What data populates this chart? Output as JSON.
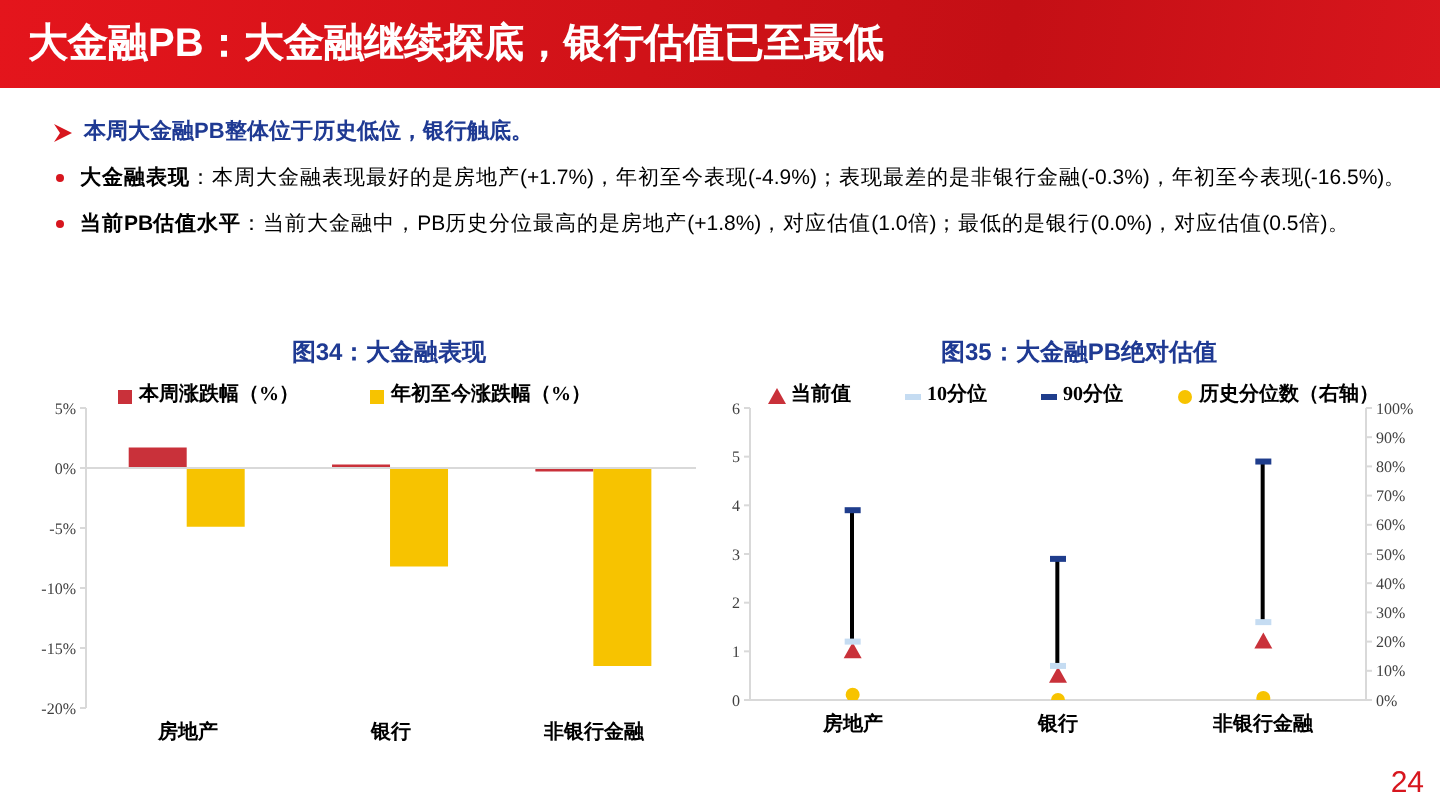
{
  "chart_data": [
    {
      "type": "other",
      "title": "大金融PB：大金融继续探底，银行估值已至最低",
      "subtitle": "本周大金融PB整体位于历史低位，银行触底。",
      "annotations": [
        "大金融表现：本周大金融表现最好的是房地产(+1.7%)，年初至今表现(-4.9%)；表现最差的是非银行金融(-0.3%)，年初至今表现(-16.5%)。",
        "当前PB估值水平：当前大金融中，PB历史分位最高的是房地产(+1.8%)，对应估值(1.0倍)；最低的是银行(0.0%)，对应估值(0.5倍)。",
        "24"
      ]
    },
    {
      "type": "bar",
      "title": "图34：大金融表现",
      "categories": [
        "房地产",
        "银行",
        "非银行金融"
      ],
      "series": [
        {
          "name": "本周涨跌幅（%）",
          "color": "#c9313a",
          "values": [
            1.7,
            0.3,
            -0.3
          ]
        },
        {
          "name": "年初至今涨跌幅（%）",
          "color": "#f7c300",
          "values": [
            -4.9,
            -8.2,
            -16.5
          ]
        }
      ],
      "ylim": [
        -20,
        5
      ],
      "yticks": [
        {
          "value": -20,
          "label": "-20%"
        },
        {
          "value": -15,
          "label": "-15%"
        },
        {
          "value": -10,
          "label": "-10%"
        },
        {
          "value": -5,
          "label": "-5%"
        },
        {
          "value": 0,
          "label": "0%"
        },
        {
          "value": 5,
          "label": "5%"
        }
      ],
      "legend": "top"
    },
    {
      "type": "scatter",
      "title": "图35：大金融PB绝对估值",
      "categories": [
        "房地产",
        "银行",
        "非银行金融"
      ],
      "series": [
        {
          "type": "bar",
          "color": "#000000",
          "base": [
            1.2,
            0.7,
            1.6
          ],
          "values": [
            2.7,
            2.2,
            3.3
          ]
        },
        {
          "name": "当前值",
          "color": "#c9313a",
          "marker": "triangle",
          "values": [
            1.0,
            0.5,
            1.2
          ]
        },
        {
          "name": "10分位",
          "color": "#c5dcf2",
          "marker": "square",
          "values": [
            1.2,
            0.7,
            1.6
          ]
        },
        {
          "name": "90分位",
          "color": "#1f3d8c",
          "marker": "square",
          "values": [
            3.9,
            2.9,
            4.9
          ]
        },
        {
          "name": "历史分位数（右轴）",
          "color": "#f7c300",
          "marker": "circle",
          "axis": "y2",
          "values": [
            1.8,
            0,
            0.7
          ]
        }
      ],
      "ylim": [
        0,
        6
      ],
      "yticks": [
        0,
        1,
        2,
        3,
        4,
        5,
        6
      ],
      "y2lim": [
        0,
        100
      ],
      "y2ticks": [
        {
          "value": 0,
          "label": "0%"
        },
        {
          "value": 10,
          "label": "10%"
        },
        {
          "value": 20,
          "label": "20%"
        },
        {
          "value": 30,
          "label": "30%"
        },
        {
          "value": 40,
          "label": "40%"
        },
        {
          "value": 50,
          "label": "50%"
        },
        {
          "value": 60,
          "label": "60%"
        },
        {
          "value": 70,
          "label": "70%"
        },
        {
          "value": 80,
          "label": "80%"
        },
        {
          "value": 90,
          "label": "90%"
        },
        {
          "value": 100,
          "label": "100%"
        }
      ],
      "legend": "top"
    }
  ]
}
